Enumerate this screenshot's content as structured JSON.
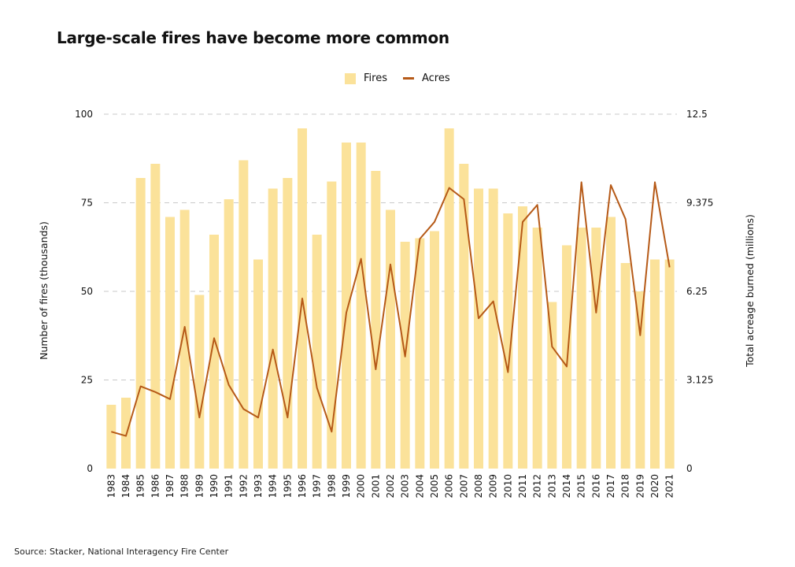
{
  "title": "Large-scale fires have become more common",
  "source": "Source: Stacker, National Interagency Fire Center",
  "legend": {
    "fires": "Fires",
    "acres": "Acres"
  },
  "colors": {
    "bar": "#fbe29a",
    "line": "#b65a18",
    "grid": "#c9c9c9"
  },
  "chart_data": {
    "type": "bar",
    "title": "Large-scale fires have become more common",
    "categories": [
      "1983",
      "1984",
      "1985",
      "1986",
      "1987",
      "1988",
      "1989",
      "1990",
      "1991",
      "1992",
      "1993",
      "1994",
      "1995",
      "1996",
      "1997",
      "1998",
      "1999",
      "2000",
      "2001",
      "2002",
      "2003",
      "2004",
      "2005",
      "2006",
      "2007",
      "2008",
      "2009",
      "2010",
      "2011",
      "2012",
      "2013",
      "2014",
      "2015",
      "2016",
      "2017",
      "2018",
      "2019",
      "2020",
      "2021"
    ],
    "series": [
      {
        "name": "Fires",
        "type": "bar",
        "axis": "left",
        "values": [
          18,
          20,
          82,
          86,
          71,
          73,
          49,
          66,
          76,
          87,
          59,
          79,
          82,
          96,
          66,
          81,
          92,
          92,
          84,
          73,
          64,
          65,
          67,
          96,
          86,
          79,
          79,
          72,
          74,
          68,
          47,
          63,
          68,
          68,
          71,
          58,
          50,
          59,
          59
        ]
      },
      {
        "name": "Acres",
        "type": "line",
        "axis": "right",
        "values": [
          1.3,
          1.15,
          2.9,
          2.7,
          2.45,
          5.0,
          1.8,
          4.6,
          2.95,
          2.1,
          1.8,
          4.2,
          1.8,
          6.0,
          2.85,
          1.3,
          5.5,
          7.4,
          3.5,
          7.2,
          3.95,
          8.1,
          8.7,
          9.9,
          9.5,
          5.3,
          5.9,
          3.4,
          8.7,
          9.3,
          4.3,
          3.6,
          10.1,
          5.5,
          10.0,
          8.8,
          4.7,
          10.1,
          7.1
        ]
      }
    ],
    "ylabel": "Number of fires (thousands)",
    "ylabel_right": "Total acreage burned (millions)",
    "ylim": [
      0,
      100
    ],
    "ylim_right": [
      0,
      12.5
    ],
    "yticks": [
      "0",
      "25",
      "50",
      "75",
      "100"
    ],
    "yticks_right": [
      "0",
      "3.125",
      "6.25",
      "9.375",
      "12.5"
    ],
    "grid": "horizontal dashed",
    "legend_position": "top-center"
  }
}
